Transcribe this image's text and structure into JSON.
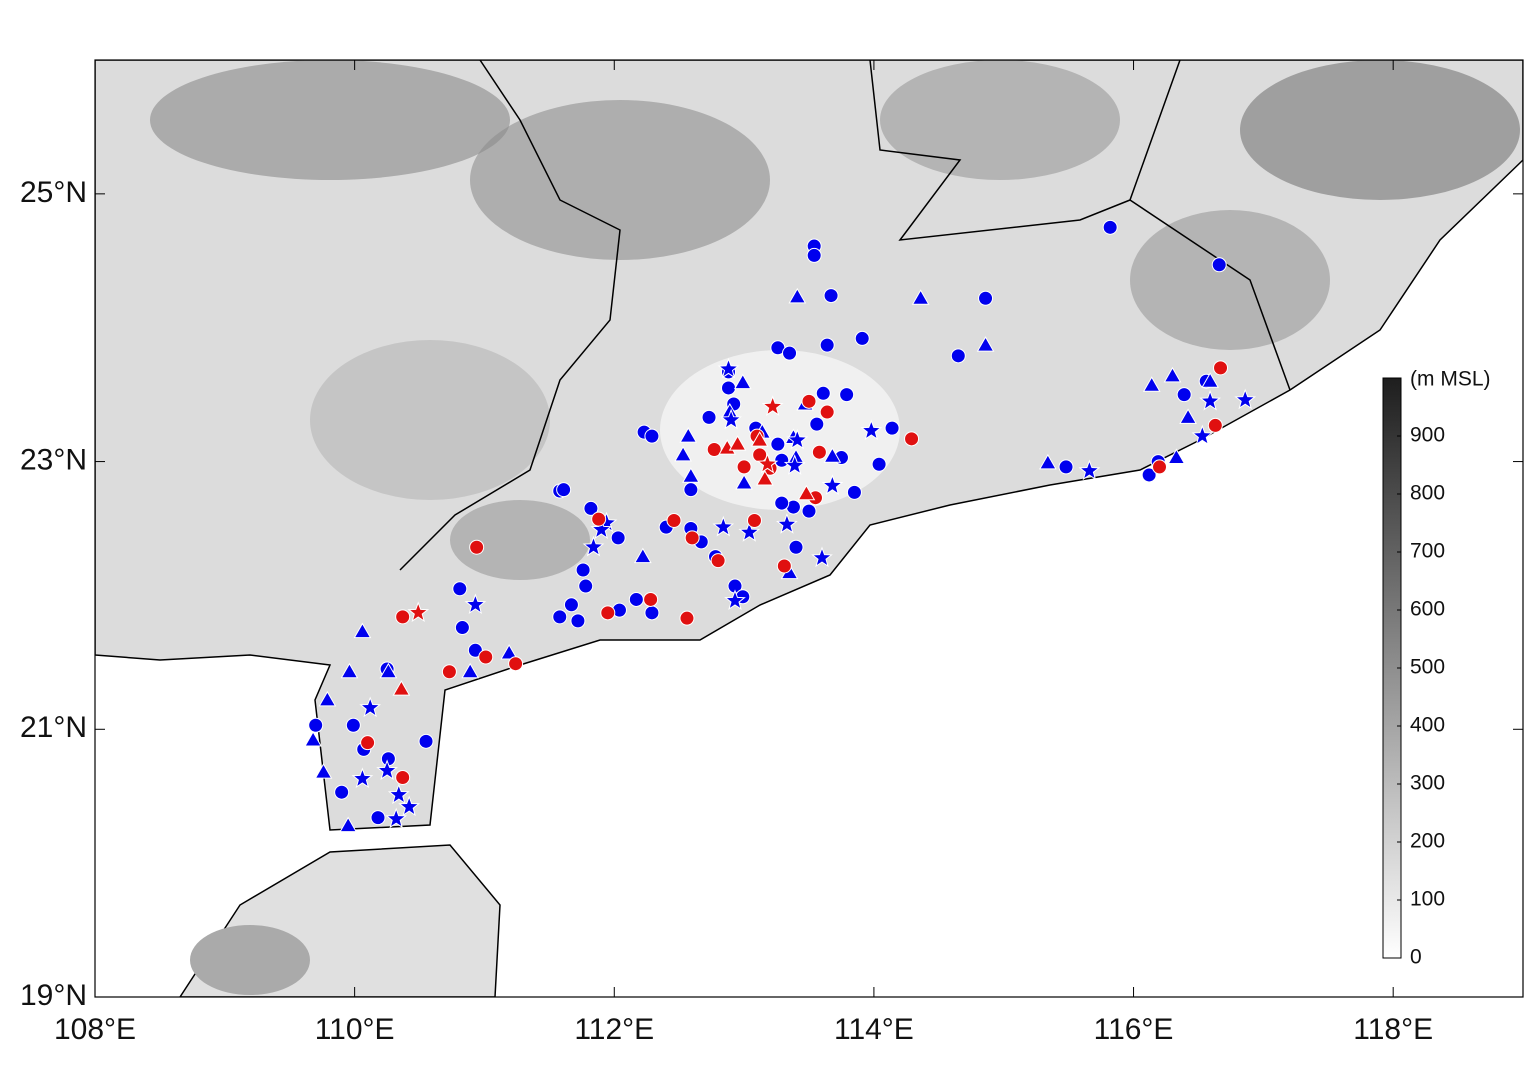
{
  "chart_data": {
    "type": "scatter",
    "xlim": [
      108,
      119
    ],
    "ylim": [
      19,
      26
    ],
    "xticks": [
      {
        "value": 108,
        "label": "108°E"
      },
      {
        "value": 110,
        "label": "110°E"
      },
      {
        "value": 112,
        "label": "112°E"
      },
      {
        "value": 114,
        "label": "114°E"
      },
      {
        "value": 116,
        "label": "116°E"
      },
      {
        "value": 118,
        "label": "118°E"
      }
    ],
    "yticks": [
      {
        "value": 19,
        "label": "19°N"
      },
      {
        "value": 21,
        "label": "21°N"
      },
      {
        "value": 23,
        "label": "23°N"
      },
      {
        "value": 25,
        "label": "25°N"
      }
    ],
    "colorbar": {
      "label": "(m MSL)",
      "lim": [
        0,
        1000
      ],
      "ticks": [
        0,
        100,
        200,
        300,
        400,
        500,
        600,
        700,
        800,
        900
      ]
    },
    "series": [
      {
        "color": "#0000ee",
        "marker": "circle",
        "x": [
          113.54,
          113.54,
          113.67,
          115.82,
          116.66,
          114.86,
          113.26,
          113.35,
          113.64,
          113.91,
          114.65,
          113.79,
          113.61,
          112.88,
          112.88,
          112.92,
          112.73,
          112.23,
          112.29,
          114.14,
          114.04,
          113.75,
          113.56,
          113.85,
          115.48,
          116.12,
          116.39,
          116.56,
          116.19,
          111.58,
          111.61,
          111.82,
          112.03,
          111.76,
          111.78,
          111.67,
          111.58,
          111.72,
          112.04,
          112.17,
          112.29,
          112.59,
          112.67,
          112.78,
          112.4,
          112.59,
          112.93,
          112.99,
          113.4,
          113.38,
          113.29,
          110.81,
          110.83,
          110.93,
          110.25,
          109.99,
          109.7,
          110.07,
          110.26,
          109.9,
          110.18,
          110.55,
          113.5,
          113.26,
          113.09,
          113.29
        ],
        "values": [
          24.61,
          24.54,
          24.24,
          24.75,
          24.47,
          24.22,
          23.85,
          23.81,
          23.87,
          23.92,
          23.79,
          23.5,
          23.51,
          23.67,
          23.55,
          23.43,
          23.33,
          23.22,
          23.19,
          23.25,
          22.98,
          23.03,
          23.28,
          22.77,
          22.96,
          22.9,
          23.5,
          23.6,
          23.0,
          22.78,
          22.79,
          22.65,
          22.43,
          22.19,
          22.07,
          21.93,
          21.84,
          21.81,
          21.89,
          21.97,
          21.87,
          22.5,
          22.4,
          22.29,
          22.51,
          22.79,
          22.07,
          21.99,
          22.36,
          22.66,
          22.69,
          22.05,
          21.76,
          21.59,
          21.45,
          21.03,
          21.03,
          20.85,
          20.78,
          20.53,
          20.34,
          20.91,
          22.63,
          23.13,
          23.25,
          23.01
        ]
      },
      {
        "color": "#0000ee",
        "marker": "triangle",
        "x": [
          113.41,
          114.36,
          114.86,
          112.99,
          112.89,
          112.57,
          112.53,
          112.59,
          113.14,
          113.38,
          113.4,
          113.68,
          113.47,
          113.0,
          112.22,
          115.34,
          116.14,
          116.3,
          116.42,
          116.33,
          116.59,
          110.06,
          109.96,
          109.79,
          109.68,
          109.76,
          109.95,
          110.89,
          111.19,
          113.35,
          110.26
        ],
        "values": [
          24.23,
          24.22,
          23.87,
          23.59,
          23.37,
          23.19,
          23.05,
          22.89,
          23.22,
          23.18,
          23.03,
          23.04,
          23.43,
          22.84,
          22.29,
          22.99,
          23.57,
          23.64,
          23.33,
          23.03,
          23.6,
          21.73,
          21.43,
          21.22,
          20.92,
          20.68,
          20.28,
          21.43,
          21.57,
          22.17,
          21.43
        ]
      },
      {
        "color": "#0000ee",
        "marker": "star",
        "x": [
          112.88,
          113.98,
          113.41,
          112.9,
          112.84,
          113.04,
          113.33,
          113.6,
          113.68,
          111.84,
          111.94,
          111.9,
          110.93,
          115.66,
          116.86,
          116.53,
          116.59,
          110.12,
          110.06,
          110.25,
          110.34,
          110.42,
          110.32,
          112.93,
          113.39
        ],
        "values": [
          23.69,
          23.23,
          23.16,
          23.31,
          22.51,
          22.47,
          22.53,
          22.28,
          22.82,
          22.36,
          22.54,
          22.49,
          21.93,
          22.93,
          23.46,
          23.19,
          23.45,
          21.16,
          20.63,
          20.69,
          20.51,
          20.42,
          20.33,
          21.96,
          22.97
        ]
      },
      {
        "color": "#e01010",
        "marker": "circle",
        "x": [
          116.67,
          113.64,
          113.5,
          114.29,
          113.58,
          113.55,
          113.1,
          113.0,
          113.2,
          112.77,
          113.12,
          113.08,
          113.31,
          112.46,
          112.6,
          112.8,
          111.88,
          112.28,
          111.95,
          112.56,
          110.94,
          110.37,
          110.73,
          111.01,
          111.24,
          110.1,
          110.37,
          116.63,
          116.2
        ],
        "values": [
          23.7,
          23.37,
          23.45,
          23.17,
          23.07,
          22.73,
          23.19,
          22.96,
          22.95,
          23.09,
          23.05,
          22.56,
          22.22,
          22.56,
          22.43,
          22.26,
          22.57,
          21.97,
          21.87,
          21.83,
          22.36,
          21.84,
          21.43,
          21.54,
          21.49,
          20.9,
          20.64,
          23.27,
          22.96
        ]
      },
      {
        "color": "#e01010",
        "marker": "triangle",
        "x": [
          112.87,
          113.16,
          113.48,
          110.36,
          113.12,
          112.95
        ],
        "values": [
          23.1,
          22.87,
          22.76,
          21.3,
          23.16,
          23.13
        ]
      },
      {
        "color": "#e01010",
        "marker": "star",
        "x": [
          113.22,
          110.49,
          113.18
        ],
        "values": [
          23.41,
          21.87,
          22.98
        ]
      }
    ]
  }
}
